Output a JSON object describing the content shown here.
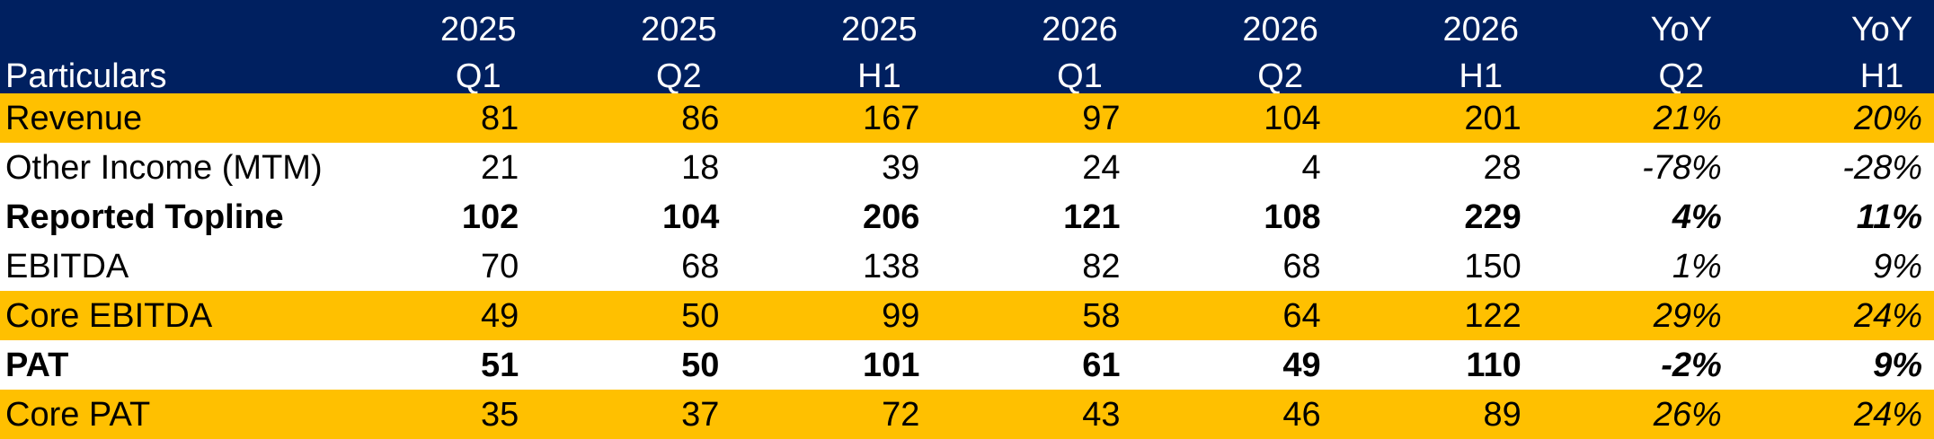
{
  "header": {
    "particulars_label": "Particulars",
    "columns": [
      {
        "top": "2025",
        "bottom": "Q1"
      },
      {
        "top": "2025",
        "bottom": "Q2"
      },
      {
        "top": "2025",
        "bottom": "H1"
      },
      {
        "top": "2026",
        "bottom": "Q1"
      },
      {
        "top": "2026",
        "bottom": "Q2"
      },
      {
        "top": "2026",
        "bottom": "H1"
      },
      {
        "top": "YoY",
        "bottom": "Q2"
      },
      {
        "top": "YoY",
        "bottom": "H1"
      }
    ]
  },
  "rows": [
    {
      "label": "Revenue",
      "values": [
        "81",
        "86",
        "167",
        "97",
        "104",
        "201",
        "21%",
        "20%"
      ],
      "highlight": "#ffc000",
      "bold": false
    },
    {
      "label": "Other Income  (MTM)",
      "values": [
        "21",
        "18",
        "39",
        "24",
        "4",
        "28",
        "-78%",
        "-28%"
      ],
      "highlight": "#ffffff",
      "bold": false
    },
    {
      "label": "Reported Topline",
      "values": [
        "102",
        "104",
        "206",
        "121",
        "108",
        "229",
        "4%",
        "11%"
      ],
      "highlight": "#ffffff",
      "bold": true
    },
    {
      "label": "EBITDA",
      "values": [
        "70",
        "68",
        "138",
        "82",
        "68",
        "150",
        "1%",
        "9%"
      ],
      "highlight": "#ffffff",
      "bold": false
    },
    {
      "label": "Core EBITDA",
      "values": [
        "49",
        "50",
        "99",
        "58",
        "64",
        "122",
        "29%",
        "24%"
      ],
      "highlight": "#ffc000",
      "bold": false
    },
    {
      "label": "PAT",
      "values": [
        "51",
        "50",
        "101",
        "61",
        "49",
        "110",
        "-2%",
        "9%"
      ],
      "highlight": "#ffffff",
      "bold": true
    },
    {
      "label": "Core PAT",
      "values": [
        "35",
        "37",
        "72",
        "43",
        "46",
        "89",
        "26%",
        "24%"
      ],
      "highlight": "#ffc000",
      "bold": false
    }
  ],
  "colors": {
    "header_bg": "#002060",
    "header_text": "#ffffff",
    "highlight_gold": "#ffc000"
  }
}
